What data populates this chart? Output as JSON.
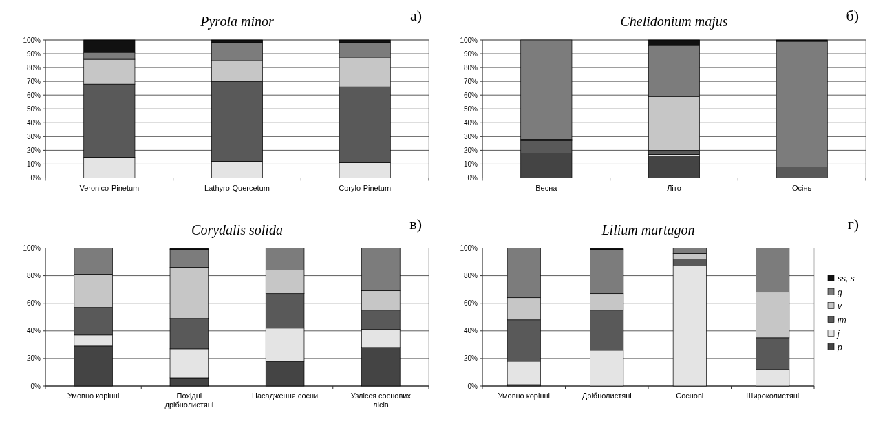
{
  "chart_data": [
    {
      "type": "bar",
      "stacked": true,
      "title": "Pyrola minor",
      "annotations": [
        "а)"
      ],
      "categories": [
        "Veronico-Pinetum",
        "Lathyro-Quercetum",
        "Corylo-Pinetum"
      ],
      "ylim": [
        0,
        100
      ],
      "yticks": [
        {
          "value": 0,
          "label": "0%"
        },
        {
          "value": 10,
          "label": "10%"
        },
        {
          "value": 20,
          "label": "20%"
        },
        {
          "value": 30,
          "label": "30%"
        },
        {
          "value": 40,
          "label": "40%"
        },
        {
          "value": 50,
          "label": "50%"
        },
        {
          "value": 60,
          "label": "60%"
        },
        {
          "value": 70,
          "label": "70%"
        },
        {
          "value": 80,
          "label": "80%"
        },
        {
          "value": 90,
          "label": "90%"
        },
        {
          "value": 100,
          "label": "100%"
        }
      ],
      "grid": "y",
      "legend": false,
      "series": [
        {
          "color": "#444444",
          "values": [
            0,
            0,
            0
          ]
        },
        {
          "color": "#e4e4e4",
          "values": [
            15,
            12,
            11
          ]
        },
        {
          "color": "#595959",
          "values": [
            53,
            58,
            55
          ]
        },
        {
          "color": "#c6c6c6",
          "values": [
            18,
            15,
            21
          ]
        },
        {
          "color": "#7c7c7c",
          "values": [
            5,
            13,
            11
          ]
        },
        {
          "color": "#111111",
          "values": [
            9,
            2,
            2
          ]
        }
      ]
    },
    {
      "type": "bar",
      "stacked": true,
      "title": "Chelidonium majus",
      "annotations": [
        "б)"
      ],
      "categories": [
        "Весна",
        "Літо",
        "Осінь"
      ],
      "ylim": [
        0,
        100
      ],
      "yticks": [
        {
          "value": 0,
          "label": "0%"
        },
        {
          "value": 10,
          "label": "10%"
        },
        {
          "value": 20,
          "label": "20%"
        },
        {
          "value": 30,
          "label": "30%"
        },
        {
          "value": 40,
          "label": "40%"
        },
        {
          "value": 50,
          "label": "50%"
        },
        {
          "value": 60,
          "label": "60%"
        },
        {
          "value": 70,
          "label": "70%"
        },
        {
          "value": 80,
          "label": "80%"
        },
        {
          "value": 90,
          "label": "90%"
        },
        {
          "value": 100,
          "label": "100%"
        }
      ],
      "grid": "y",
      "legend": false,
      "series": [
        {
          "color": "#444444",
          "values": [
            18,
            16,
            0
          ]
        },
        {
          "color": "#e4e4e4",
          "values": [
            0,
            1,
            0
          ]
        },
        {
          "color": "#595959",
          "values": [
            9,
            3,
            8
          ]
        },
        {
          "color": "#c6c6c6",
          "values": [
            1,
            39,
            0
          ]
        },
        {
          "color": "#7c7c7c",
          "values": [
            72,
            37,
            91
          ]
        },
        {
          "color": "#111111",
          "values": [
            0,
            4,
            1
          ]
        }
      ]
    },
    {
      "type": "bar",
      "stacked": true,
      "title": "Corydalis solida",
      "annotations": [
        "в)"
      ],
      "categories": [
        "Умовно корінні",
        "Похідні дрібнолистяні",
        "Насадження сосни",
        "Узлісся соснових лісів"
      ],
      "ylim": [
        0,
        100
      ],
      "yticks": [
        {
          "value": 0,
          "label": "0%"
        },
        {
          "value": 20,
          "label": "20%"
        },
        {
          "value": 40,
          "label": "40%"
        },
        {
          "value": 60,
          "label": "60%"
        },
        {
          "value": 80,
          "label": "80%"
        },
        {
          "value": 100,
          "label": "100%"
        }
      ],
      "grid": "y",
      "legend": false,
      "series": [
        {
          "color": "#444444",
          "values": [
            29,
            6,
            18,
            28
          ]
        },
        {
          "color": "#e4e4e4",
          "values": [
            8,
            21,
            24,
            13
          ]
        },
        {
          "color": "#595959",
          "values": [
            20,
            22,
            25,
            14
          ]
        },
        {
          "color": "#c6c6c6",
          "values": [
            24,
            37,
            17,
            14
          ]
        },
        {
          "color": "#7c7c7c",
          "values": [
            19,
            13,
            16,
            31
          ]
        },
        {
          "color": "#111111",
          "values": [
            0,
            1,
            0,
            0
          ]
        }
      ]
    },
    {
      "type": "bar",
      "stacked": true,
      "title": "Lilium martagon",
      "annotations": [
        "г)"
      ],
      "categories": [
        "Умовно корінні",
        "Дрібнолистяні",
        "Соснові",
        "Широколистяні"
      ],
      "ylim": [
        0,
        100
      ],
      "yticks": [
        {
          "value": 0,
          "label": "0%"
        },
        {
          "value": 20,
          "label": "20%"
        },
        {
          "value": 40,
          "label": "40%"
        },
        {
          "value": 60,
          "label": "60%"
        },
        {
          "value": 80,
          "label": "80%"
        },
        {
          "value": 100,
          "label": "100%"
        }
      ],
      "grid": "y",
      "legend": "right",
      "series": [
        {
          "name": "p",
          "color": "#444444",
          "values": [
            1,
            0,
            0,
            0
          ]
        },
        {
          "name": "j",
          "color": "#e4e4e4",
          "values": [
            17,
            26,
            87,
            12
          ]
        },
        {
          "name": "im",
          "color": "#595959",
          "values": [
            30,
            29,
            5,
            23
          ]
        },
        {
          "name": "v",
          "color": "#c6c6c6",
          "values": [
            16,
            12,
            4,
            33
          ]
        },
        {
          "name": "g",
          "color": "#7c7c7c",
          "values": [
            36,
            32,
            4,
            32
          ]
        },
        {
          "name": "ss, s",
          "color": "#111111",
          "values": [
            0,
            1,
            0,
            0
          ]
        }
      ]
    }
  ]
}
